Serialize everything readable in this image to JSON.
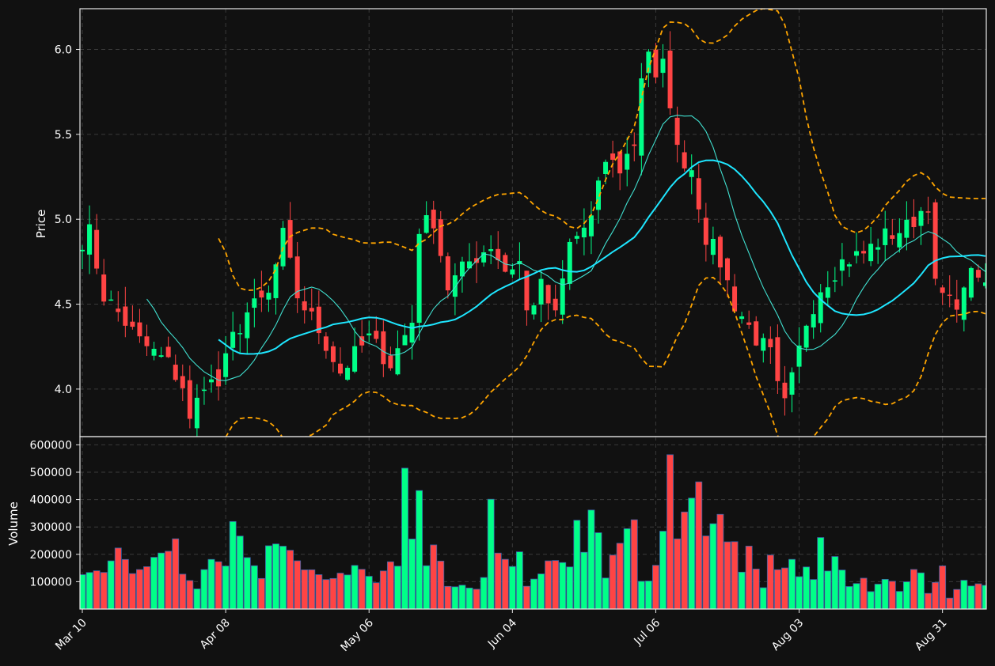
{
  "chart_data": {
    "type": "candlestick",
    "style": "dark",
    "colors": {
      "background": "#111111",
      "up": "#00ff88",
      "down": "#ff4444",
      "sma_fast": "#40e0d0",
      "sma_slow": "#1ee6ff",
      "bollinger": "#ffa500",
      "grid": "#3a3a3a",
      "text": "#ffffff"
    },
    "price_panel": {
      "ylabel": "Price",
      "ylim": [
        3.72,
        6.24
      ],
      "yticks": [
        4.0,
        4.5,
        5.0,
        5.5,
        6.0
      ],
      "ytick_labels": [
        "4.0",
        "4.5",
        "5.0",
        "5.5",
        "6.0"
      ],
      "grid": true
    },
    "volume_panel": {
      "ylabel": "Volume",
      "ylim": [
        0,
        630000
      ],
      "yticks": [
        100000,
        200000,
        300000,
        400000,
        500000,
        600000
      ],
      "ytick_labels": [
        "100000",
        "200000",
        "300000",
        "400000",
        "500000",
        "600000"
      ],
      "grid": true
    },
    "x_axis": {
      "n_bars": 127,
      "tick_labels": [
        "Mar 10",
        "Apr 08",
        "May 06",
        "Jun 04",
        "Jul 06",
        "Aug 03",
        "Aug 31"
      ],
      "tick_indices": [
        0,
        20,
        40,
        60,
        80,
        100,
        120
      ],
      "label_rotation_deg": -45
    },
    "anchors": {
      "close": [
        [
          0,
          4.88
        ],
        [
          1,
          4.92
        ],
        [
          3,
          4.55
        ],
        [
          5,
          4.45
        ],
        [
          8,
          4.28
        ],
        [
          12,
          4.15
        ],
        [
          14,
          4.02
        ],
        [
          15,
          3.8
        ],
        [
          17,
          4.05
        ],
        [
          19,
          4.02
        ],
        [
          21,
          4.3
        ],
        [
          23,
          4.45
        ],
        [
          26,
          4.55
        ],
        [
          28,
          4.9
        ],
        [
          30,
          4.55
        ],
        [
          33,
          4.35
        ],
        [
          36,
          4.1
        ],
        [
          40,
          4.3
        ],
        [
          43,
          4.15
        ],
        [
          46,
          4.4
        ],
        [
          47,
          4.95
        ],
        [
          49,
          5.0
        ],
        [
          51,
          4.6
        ],
        [
          54,
          4.75
        ],
        [
          57,
          4.85
        ],
        [
          59,
          4.7
        ],
        [
          61,
          4.75
        ],
        [
          62,
          4.45
        ],
        [
          64,
          4.6
        ],
        [
          66,
          4.42
        ],
        [
          68,
          4.85
        ],
        [
          71,
          5.0
        ],
        [
          73,
          5.35
        ],
        [
          75,
          5.3
        ],
        [
          77,
          5.45
        ],
        [
          78,
          5.85
        ],
        [
          79,
          6.0
        ],
        [
          80,
          5.8
        ],
        [
          81,
          5.9
        ],
        [
          82,
          5.7
        ],
        [
          83,
          5.4
        ],
        [
          85,
          5.3
        ],
        [
          87,
          4.9
        ],
        [
          89,
          4.75
        ],
        [
          91,
          4.5
        ],
        [
          94,
          4.3
        ],
        [
          96,
          4.2
        ],
        [
          97,
          4.0
        ],
        [
          98,
          3.9
        ],
        [
          99,
          4.05
        ],
        [
          101,
          4.4
        ],
        [
          103,
          4.6
        ],
        [
          106,
          4.75
        ],
        [
          109,
          4.8
        ],
        [
          112,
          4.9
        ],
        [
          115,
          4.95
        ],
        [
          118,
          5.1
        ],
        [
          119,
          4.6
        ],
        [
          121,
          4.5
        ],
        [
          123,
          4.55
        ],
        [
          124,
          4.75
        ],
        [
          125,
          4.6
        ],
        [
          126,
          4.62
        ]
      ],
      "volume": [
        [
          0,
          130000
        ],
        [
          3,
          130000
        ],
        [
          5,
          230000
        ],
        [
          7,
          140000
        ],
        [
          9,
          170000
        ],
        [
          13,
          250000
        ],
        [
          14,
          130000
        ],
        [
          16,
          80000
        ],
        [
          18,
          190000
        ],
        [
          20,
          170000
        ],
        [
          21,
          340000
        ],
        [
          23,
          200000
        ],
        [
          25,
          110000
        ],
        [
          26,
          220000
        ],
        [
          28,
          230000
        ],
        [
          30,
          170000
        ],
        [
          32,
          140000
        ],
        [
          34,
          100000
        ],
        [
          37,
          130000
        ],
        [
          39,
          160000
        ],
        [
          41,
          100000
        ],
        [
          43,
          160000
        ],
        [
          44,
          150000
        ],
        [
          45,
          510000
        ],
        [
          46,
          270000
        ],
        [
          47,
          430000
        ],
        [
          48,
          150000
        ],
        [
          49,
          250000
        ],
        [
          51,
          80000
        ],
        [
          55,
          80000
        ],
        [
          56,
          110000
        ],
        [
          57,
          400000
        ],
        [
          58,
          200000
        ],
        [
          60,
          150000
        ],
        [
          61,
          230000
        ],
        [
          62,
          80000
        ],
        [
          64,
          120000
        ],
        [
          65,
          170000
        ],
        [
          67,
          180000
        ],
        [
          68,
          150000
        ],
        [
          69,
          320000
        ],
        [
          70,
          210000
        ],
        [
          71,
          400000
        ],
        [
          72,
          260000
        ],
        [
          73,
          110000
        ],
        [
          75,
          250000
        ],
        [
          76,
          280000
        ],
        [
          77,
          300000
        ],
        [
          78,
          100000
        ],
        [
          79,
          100000
        ],
        [
          80,
          170000
        ],
        [
          81,
          300000
        ],
        [
          82,
          570000
        ],
        [
          83,
          260000
        ],
        [
          84,
          390000
        ],
        [
          85,
          400000
        ],
        [
          86,
          440000
        ],
        [
          87,
          250000
        ],
        [
          88,
          340000
        ],
        [
          89,
          360000
        ],
        [
          90,
          240000
        ],
        [
          91,
          250000
        ],
        [
          92,
          140000
        ],
        [
          93,
          240000
        ],
        [
          94,
          160000
        ],
        [
          95,
          80000
        ],
        [
          96,
          200000
        ],
        [
          97,
          140000
        ],
        [
          98,
          150000
        ],
        [
          99,
          180000
        ],
        [
          100,
          120000
        ],
        [
          101,
          150000
        ],
        [
          102,
          100000
        ],
        [
          103,
          240000
        ],
        [
          104,
          140000
        ],
        [
          105,
          180000
        ],
        [
          106,
          130000
        ],
        [
          107,
          80000
        ],
        [
          109,
          110000
        ],
        [
          110,
          70000
        ],
        [
          112,
          120000
        ],
        [
          114,
          70000
        ],
        [
          116,
          140000
        ],
        [
          117,
          140000
        ],
        [
          118,
          60000
        ],
        [
          120,
          150000
        ],
        [
          121,
          40000
        ],
        [
          123,
          100000
        ],
        [
          126,
          80000
        ]
      ]
    },
    "overlays": [
      {
        "kind": "sma",
        "window": 10,
        "color": "#40e0d0"
      },
      {
        "kind": "sma",
        "window": 20,
        "color": "#1ee6ff"
      },
      {
        "kind": "bollinger_upper",
        "window": 20,
        "k": 2,
        "color": "#ffa500"
      },
      {
        "kind": "bollinger_lower",
        "window": 20,
        "k": 2,
        "color": "#ffa500"
      }
    ]
  }
}
